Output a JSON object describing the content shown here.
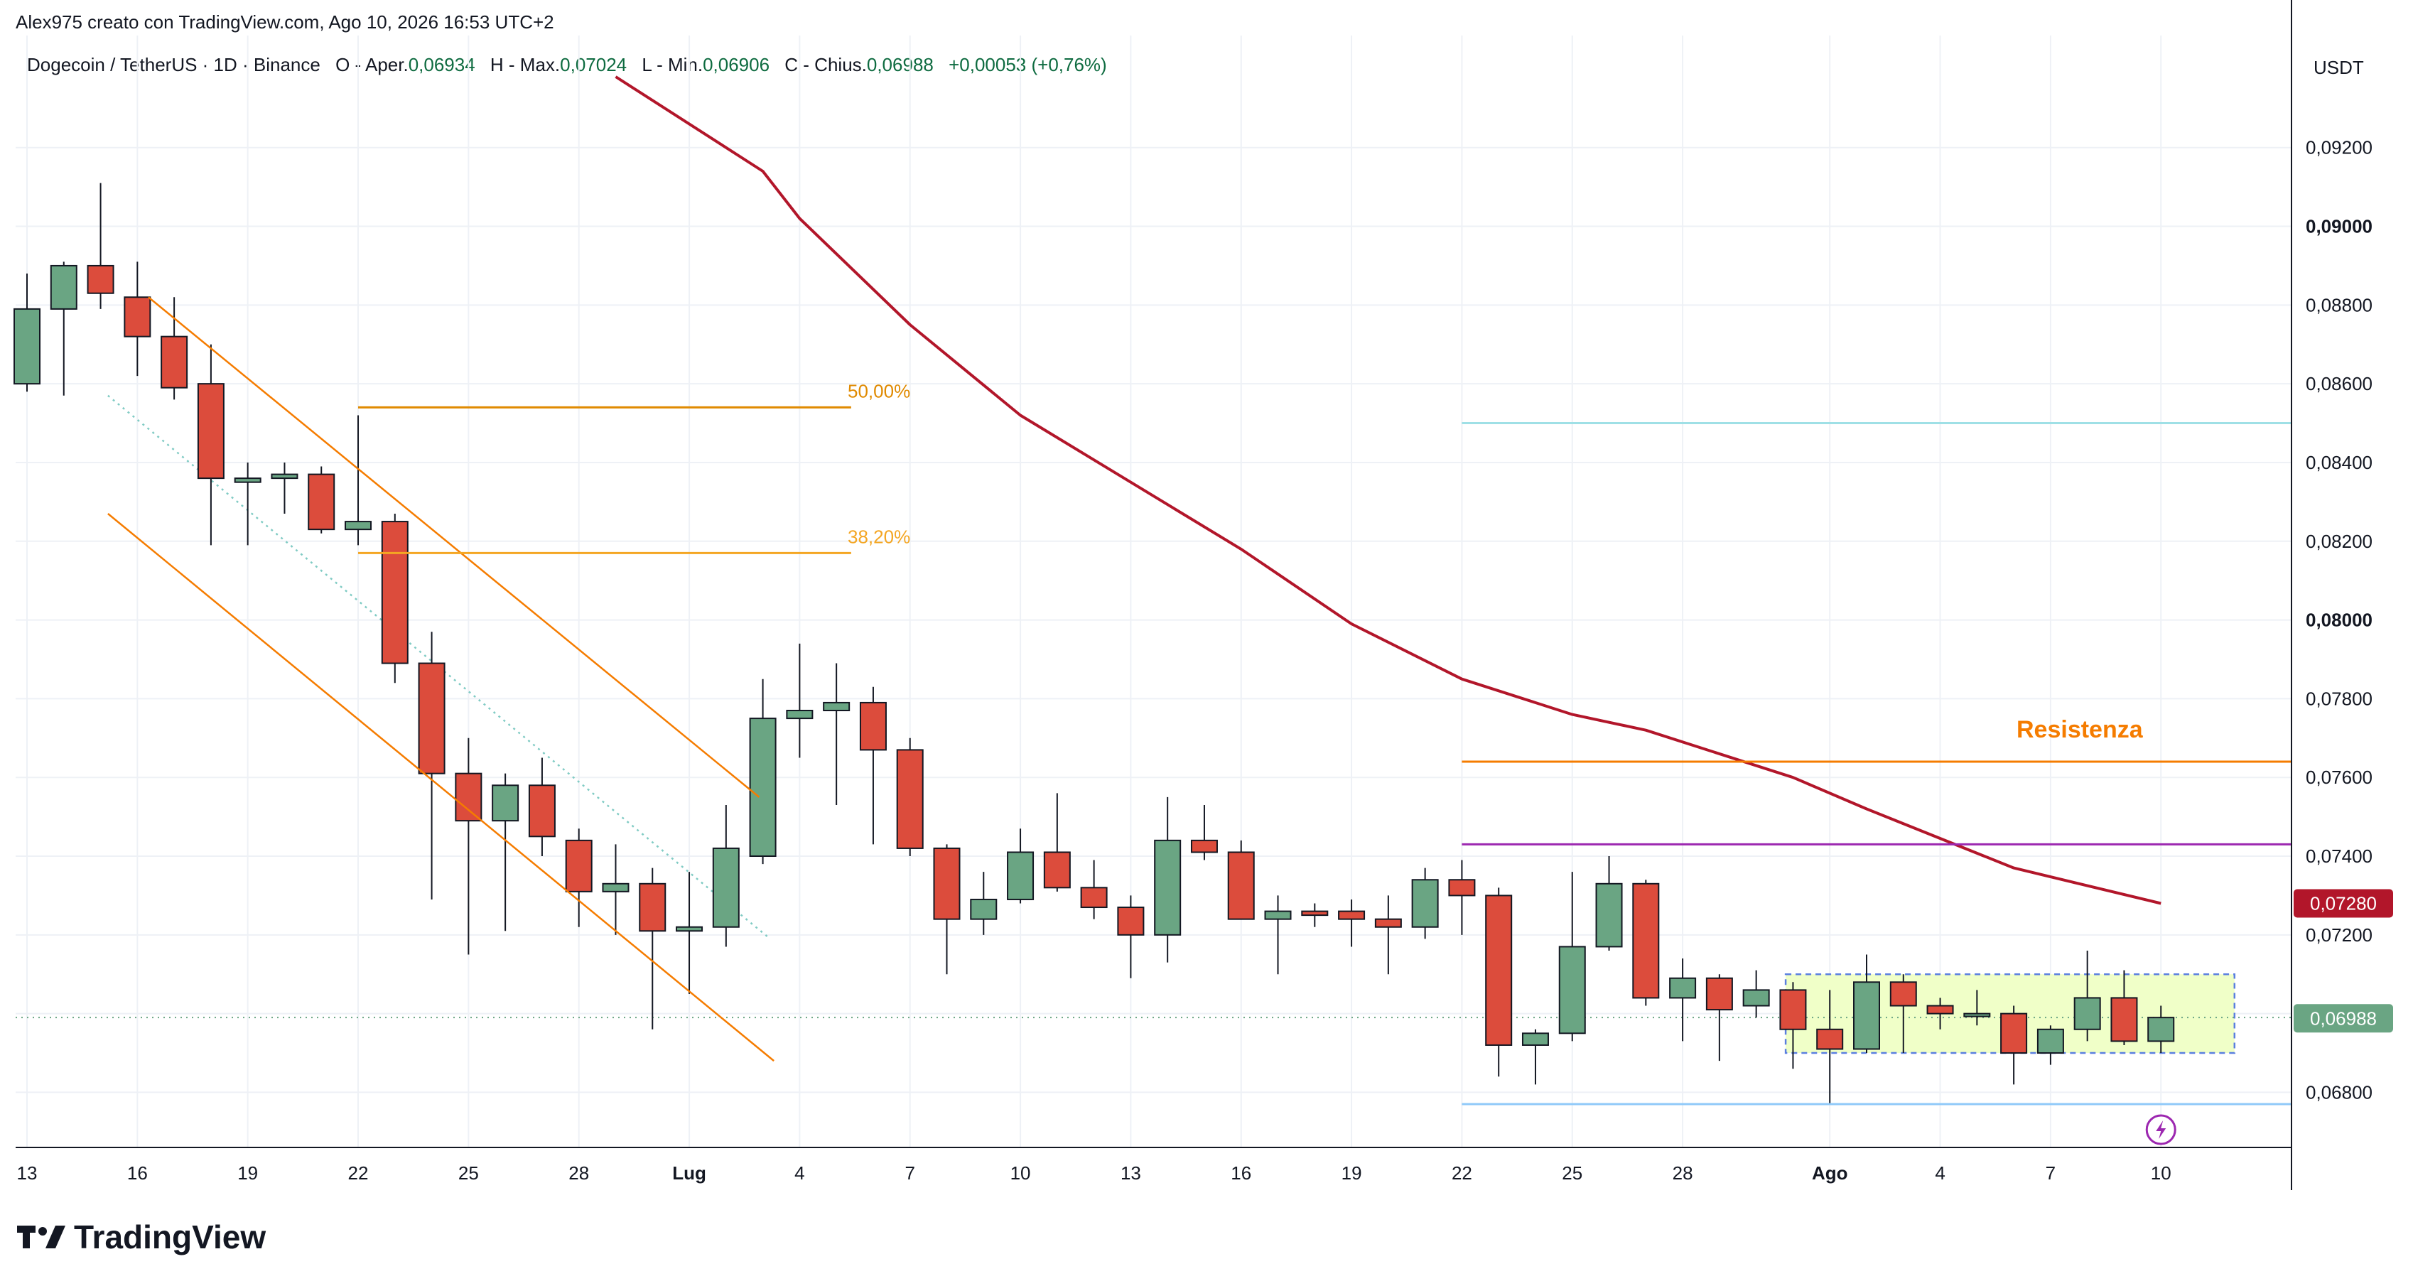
{
  "header": {
    "credit": "Alex975 creato con TradingView.com, Ago 10, 2026 16:53 UTC+2",
    "legend_symbol": "Dogecoin / TetherUS · 1D · Binance",
    "legend_open_label": "O - Aper.",
    "legend_open": "0,06934",
    "legend_high_label": "H - Max.",
    "legend_high": "0,07024",
    "legend_low_label": "L - Min.",
    "legend_low": "0,06906",
    "legend_close_label": "C - Chius.",
    "legend_close": "0,06988",
    "legend_change": "+0,00053 (+0,76%)"
  },
  "brand": {
    "name": "TradingView",
    "logo_icon": "tradingview-logo-icon"
  },
  "colors": {
    "up": "#6aa583",
    "down": "#dc4c3c",
    "ma": "#b2162a",
    "fib": "#f4a623",
    "channel": "#f57c00",
    "resistance": "#f57c00",
    "support_upper": "#9fe0e6",
    "support_lower": "#90caf9",
    "purple": "#9c27b0",
    "range_fill": "#f0ffc8",
    "range_border": "#5a7fe0",
    "grid": "#eef1f6",
    "legend_green": "#0e6b40"
  },
  "chart_data": {
    "type": "candlestick",
    "title": "Dogecoin / TetherUS · 1D · Binance",
    "y_axis_label": "USDT",
    "ylim": [
      0.0666,
      0.0938
    ],
    "y_ticks": [
      "0,06800",
      "0,07000",
      "0,07200",
      "0,07400",
      "0,07600",
      "0,07800",
      "0,08000",
      "0,08200",
      "0,08400",
      "0,08600",
      "0,08800",
      "0,09000",
      "0,09200"
    ],
    "x_ticks": [
      {
        "d": 0,
        "label": "13"
      },
      {
        "d": 3,
        "label": "16"
      },
      {
        "d": 6,
        "label": "19"
      },
      {
        "d": 9,
        "label": "22"
      },
      {
        "d": 12,
        "label": "25"
      },
      {
        "d": 15,
        "label": "28"
      },
      {
        "d": 18,
        "label": "Lug"
      },
      {
        "d": 21,
        "label": "4"
      },
      {
        "d": 24,
        "label": "7"
      },
      {
        "d": 27,
        "label": "10"
      },
      {
        "d": 30,
        "label": "13"
      },
      {
        "d": 33,
        "label": "16"
      },
      {
        "d": 36,
        "label": "19"
      },
      {
        "d": 39,
        "label": "22"
      },
      {
        "d": 42,
        "label": "25"
      },
      {
        "d": 45,
        "label": "28"
      },
      {
        "d": 49,
        "label": "Ago"
      },
      {
        "d": 52,
        "label": "4"
      },
      {
        "d": 55,
        "label": "7"
      },
      {
        "d": 58,
        "label": "10"
      }
    ],
    "candles": [
      {
        "d": 0,
        "o": 0.086,
        "h": 0.0888,
        "l": 0.0858,
        "c": 0.0879
      },
      {
        "d": 1,
        "o": 0.0879,
        "h": 0.0891,
        "l": 0.0857,
        "c": 0.089
      },
      {
        "d": 2,
        "o": 0.089,
        "h": 0.0911,
        "l": 0.0879,
        "c": 0.0883
      },
      {
        "d": 3,
        "o": 0.0882,
        "h": 0.0891,
        "l": 0.0862,
        "c": 0.0872
      },
      {
        "d": 4,
        "o": 0.0872,
        "h": 0.0882,
        "l": 0.0856,
        "c": 0.0859
      },
      {
        "d": 5,
        "o": 0.086,
        "h": 0.087,
        "l": 0.0819,
        "c": 0.0836
      },
      {
        "d": 6,
        "o": 0.0835,
        "h": 0.084,
        "l": 0.0819,
        "c": 0.0836
      },
      {
        "d": 7,
        "o": 0.0836,
        "h": 0.084,
        "l": 0.0827,
        "c": 0.0837
      },
      {
        "d": 8,
        "o": 0.0837,
        "h": 0.0839,
        "l": 0.0822,
        "c": 0.0823
      },
      {
        "d": 9,
        "o": 0.0823,
        "h": 0.0852,
        "l": 0.0819,
        "c": 0.0825
      },
      {
        "d": 10,
        "o": 0.0825,
        "h": 0.0827,
        "l": 0.0784,
        "c": 0.0789
      },
      {
        "d": 11,
        "o": 0.0789,
        "h": 0.0797,
        "l": 0.0729,
        "c": 0.0761
      },
      {
        "d": 12,
        "o": 0.0761,
        "h": 0.077,
        "l": 0.0715,
        "c": 0.0749
      },
      {
        "d": 13,
        "o": 0.0749,
        "h": 0.0761,
        "l": 0.0721,
        "c": 0.0758
      },
      {
        "d": 14,
        "o": 0.0758,
        "h": 0.0765,
        "l": 0.074,
        "c": 0.0745
      },
      {
        "d": 15,
        "o": 0.0744,
        "h": 0.0747,
        "l": 0.0722,
        "c": 0.0731
      },
      {
        "d": 16,
        "o": 0.0731,
        "h": 0.0743,
        "l": 0.072,
        "c": 0.0733
      },
      {
        "d": 17,
        "o": 0.0733,
        "h": 0.0737,
        "l": 0.0696,
        "c": 0.0721
      },
      {
        "d": 18,
        "o": 0.0721,
        "h": 0.0736,
        "l": 0.0705,
        "c": 0.0722
      },
      {
        "d": 19,
        "o": 0.0722,
        "h": 0.0753,
        "l": 0.0717,
        "c": 0.0742
      },
      {
        "d": 20,
        "o": 0.074,
        "h": 0.0785,
        "l": 0.0738,
        "c": 0.0775
      },
      {
        "d": 21,
        "o": 0.0775,
        "h": 0.0794,
        "l": 0.0765,
        "c": 0.0777
      },
      {
        "d": 22,
        "o": 0.0777,
        "h": 0.0789,
        "l": 0.0753,
        "c": 0.0779
      },
      {
        "d": 23,
        "o": 0.0779,
        "h": 0.0783,
        "l": 0.0743,
        "c": 0.0767
      },
      {
        "d": 24,
        "o": 0.0767,
        "h": 0.077,
        "l": 0.074,
        "c": 0.0742
      },
      {
        "d": 25,
        "o": 0.0742,
        "h": 0.0743,
        "l": 0.071,
        "c": 0.0724
      },
      {
        "d": 26,
        "o": 0.0724,
        "h": 0.0736,
        "l": 0.072,
        "c": 0.0729
      },
      {
        "d": 27,
        "o": 0.0729,
        "h": 0.0747,
        "l": 0.0728,
        "c": 0.0741
      },
      {
        "d": 28,
        "o": 0.0741,
        "h": 0.0756,
        "l": 0.0731,
        "c": 0.0732
      },
      {
        "d": 29,
        "o": 0.0732,
        "h": 0.0739,
        "l": 0.0724,
        "c": 0.0727
      },
      {
        "d": 30,
        "o": 0.0727,
        "h": 0.073,
        "l": 0.0709,
        "c": 0.072
      },
      {
        "d": 31,
        "o": 0.072,
        "h": 0.0755,
        "l": 0.0713,
        "c": 0.0744
      },
      {
        "d": 32,
        "o": 0.0744,
        "h": 0.0753,
        "l": 0.0739,
        "c": 0.0741
      },
      {
        "d": 33,
        "o": 0.0741,
        "h": 0.0744,
        "l": 0.0724,
        "c": 0.0724
      },
      {
        "d": 34,
        "o": 0.0724,
        "h": 0.073,
        "l": 0.071,
        "c": 0.0726
      },
      {
        "d": 35,
        "o": 0.0726,
        "h": 0.0728,
        "l": 0.0722,
        "c": 0.0725
      },
      {
        "d": 36,
        "o": 0.0726,
        "h": 0.0729,
        "l": 0.0717,
        "c": 0.0724
      },
      {
        "d": 37,
        "o": 0.0724,
        "h": 0.073,
        "l": 0.071,
        "c": 0.0722
      },
      {
        "d": 38,
        "o": 0.0722,
        "h": 0.0737,
        "l": 0.0719,
        "c": 0.0734
      },
      {
        "d": 39,
        "o": 0.0734,
        "h": 0.0739,
        "l": 0.072,
        "c": 0.073
      },
      {
        "d": 40,
        "o": 0.073,
        "h": 0.0732,
        "l": 0.0684,
        "c": 0.0692
      },
      {
        "d": 41,
        "o": 0.0692,
        "h": 0.0696,
        "l": 0.0682,
        "c": 0.0695
      },
      {
        "d": 42,
        "o": 0.0695,
        "h": 0.0736,
        "l": 0.0693,
        "c": 0.0717
      },
      {
        "d": 43,
        "o": 0.0717,
        "h": 0.074,
        "l": 0.0716,
        "c": 0.0733
      },
      {
        "d": 44,
        "o": 0.0733,
        "h": 0.0734,
        "l": 0.0702,
        "c": 0.0704
      },
      {
        "d": 45,
        "o": 0.0704,
        "h": 0.0714,
        "l": 0.0693,
        "c": 0.0709
      },
      {
        "d": 46,
        "o": 0.0709,
        "h": 0.071,
        "l": 0.0688,
        "c": 0.0701
      },
      {
        "d": 47,
        "o": 0.0702,
        "h": 0.0711,
        "l": 0.0699,
        "c": 0.0706
      },
      {
        "d": 48,
        "o": 0.0706,
        "h": 0.0708,
        "l": 0.0686,
        "c": 0.0696
      },
      {
        "d": 49,
        "o": 0.0696,
        "h": 0.0706,
        "l": 0.0677,
        "c": 0.0691
      },
      {
        "d": 50,
        "o": 0.0691,
        "h": 0.0715,
        "l": 0.069,
        "c": 0.0708
      },
      {
        "d": 51,
        "o": 0.0708,
        "h": 0.071,
        "l": 0.069,
        "c": 0.0702
      },
      {
        "d": 52,
        "o": 0.0702,
        "h": 0.0704,
        "l": 0.0696,
        "c": 0.07
      },
      {
        "d": 53,
        "o": 0.07,
        "h": 0.0706,
        "l": 0.0697,
        "c": 0.07
      },
      {
        "d": 54,
        "o": 0.07,
        "h": 0.0702,
        "l": 0.0682,
        "c": 0.069
      },
      {
        "d": 55,
        "o": 0.069,
        "h": 0.0697,
        "l": 0.0687,
        "c": 0.0696
      },
      {
        "d": 56,
        "o": 0.0696,
        "h": 0.0716,
        "l": 0.0693,
        "c": 0.0704
      },
      {
        "d": 57,
        "o": 0.0704,
        "h": 0.0711,
        "l": 0.0692,
        "c": 0.0693
      },
      {
        "d": 58,
        "o": 0.0693,
        "h": 0.0702,
        "l": 0.069,
        "c": 0.0699
      }
    ],
    "moving_average": [
      {
        "d": 16,
        "v": 0.0938
      },
      {
        "d": 20,
        "v": 0.0914
      },
      {
        "d": 21,
        "v": 0.0902
      },
      {
        "d": 24,
        "v": 0.0875
      },
      {
        "d": 27,
        "v": 0.0852
      },
      {
        "d": 30,
        "v": 0.0835
      },
      {
        "d": 33,
        "v": 0.0818
      },
      {
        "d": 36,
        "v": 0.0799
      },
      {
        "d": 39,
        "v": 0.0785
      },
      {
        "d": 42,
        "v": 0.0776
      },
      {
        "d": 44,
        "v": 0.0772
      },
      {
        "d": 48,
        "v": 0.076
      },
      {
        "d": 50,
        "v": 0.0752
      },
      {
        "d": 54,
        "v": 0.0737
      },
      {
        "d": 58,
        "v": 0.0728
      }
    ],
    "drawings": {
      "fib_levels": [
        {
          "label": "50,00%",
          "value": 0.0854,
          "d_start": 9,
          "d_end": 22.4
        },
        {
          "label": "38,20%",
          "value": 0.0817,
          "d_start": 9,
          "d_end": 22.4
        }
      ],
      "channel_lines": [
        {
          "d1": 3.3,
          "v1": 0.0882,
          "d2": 19.9,
          "v2": 0.0755
        },
        {
          "d1": 2.2,
          "v1": 0.0827,
          "d2": 20.3,
          "v2": 0.0688
        }
      ],
      "dotted_line": {
        "d1": 2.2,
        "v1": 0.0857,
        "d2": 20.2,
        "v2": 0.0719
      },
      "resistance": {
        "label": "Resistenza",
        "value": 0.0764,
        "d_start": 39,
        "d_end": 61.8
      },
      "purple_line": {
        "value": 0.0743,
        "d_start": 39,
        "d_end": 61.8
      },
      "upper_cyan": {
        "value": 0.085,
        "d_start": 39,
        "d_end": 61.8
      },
      "lower_support": {
        "value": 0.0677,
        "d_start": 39,
        "d_end": 61.8
      },
      "range_box": {
        "d_start": 47.8,
        "d_end": 60,
        "v_top": 0.071,
        "v_bottom": 0.069
      },
      "current_price_dotted": 0.0699
    },
    "price_tags": [
      {
        "label": "0,07280",
        "value": 0.0728,
        "color": "#b2162a"
      },
      {
        "label": "0,06988",
        "value": 0.06988,
        "color": "#6aa583"
      }
    ],
    "bold_ticks": [
      "0,09000",
      "0,08000"
    ],
    "event_marker_icon": "lightning-icon",
    "event_marker_d": 58
  }
}
